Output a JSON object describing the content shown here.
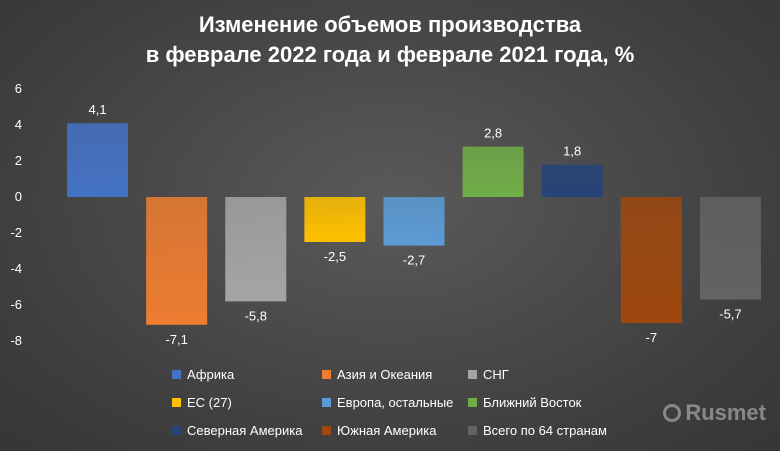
{
  "title_line1": "Изменение объемов производства",
  "title_line2": "в феврале 2022 года и феврале 2021 года, %",
  "watermark": "Rusmet",
  "chart_data": {
    "type": "bar",
    "title": "Изменение объемов производства в феврале 2022 года и феврале 2021 года, %",
    "categories": [
      "Африка",
      "Азия и Океания",
      "СНГ",
      "ЕС (27)",
      "Европа, остальные",
      "Ближний Восток",
      "Северная Америка",
      "Южная Америка",
      "Всего по 64 странам"
    ],
    "values": [
      4.1,
      -7.1,
      -5.8,
      -2.5,
      -2.7,
      2.8,
      1.8,
      -7,
      -5.7
    ],
    "value_labels": [
      "4,1",
      "-7,1",
      "-5,8",
      "-2,5",
      "-2,7",
      "2,8",
      "1,8",
      "-7",
      "-5,7"
    ],
    "colors": [
      "#4472c4",
      "#ed7d31",
      "#a5a5a5",
      "#ffc000",
      "#5b9bd5",
      "#70ad47",
      "#264478",
      "#9e480e",
      "#636363"
    ],
    "ylim": [
      -8,
      6
    ],
    "yticks": [
      6,
      4,
      2,
      0,
      -2,
      -4,
      -6,
      -8
    ],
    "grid": false,
    "legend_position": "bottom"
  }
}
